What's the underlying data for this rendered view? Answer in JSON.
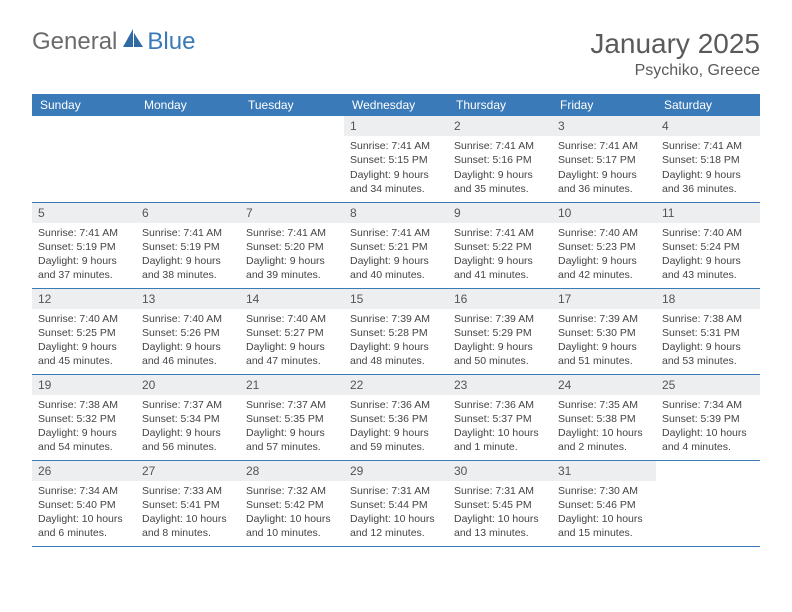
{
  "logo": {
    "text1": "General",
    "text2": "Blue"
  },
  "title": "January 2025",
  "location": "Psychiko, Greece",
  "colors": {
    "header_bg": "#3a7ab8",
    "header_fg": "#ffffff",
    "daynum_bg": "#eceeef",
    "rule": "#3a7ab8",
    "text": "#444444",
    "logo_gray": "#6b6b6b",
    "logo_blue": "#3a7ab8"
  },
  "dayNames": [
    "Sunday",
    "Monday",
    "Tuesday",
    "Wednesday",
    "Thursday",
    "Friday",
    "Saturday"
  ],
  "weeks": [
    [
      null,
      null,
      null,
      {
        "n": "1",
        "sunrise": "Sunrise: 7:41 AM",
        "sunset": "Sunset: 5:15 PM",
        "day1": "Daylight: 9 hours",
        "day2": "and 34 minutes."
      },
      {
        "n": "2",
        "sunrise": "Sunrise: 7:41 AM",
        "sunset": "Sunset: 5:16 PM",
        "day1": "Daylight: 9 hours",
        "day2": "and 35 minutes."
      },
      {
        "n": "3",
        "sunrise": "Sunrise: 7:41 AM",
        "sunset": "Sunset: 5:17 PM",
        "day1": "Daylight: 9 hours",
        "day2": "and 36 minutes."
      },
      {
        "n": "4",
        "sunrise": "Sunrise: 7:41 AM",
        "sunset": "Sunset: 5:18 PM",
        "day1": "Daylight: 9 hours",
        "day2": "and 36 minutes."
      }
    ],
    [
      {
        "n": "5",
        "sunrise": "Sunrise: 7:41 AM",
        "sunset": "Sunset: 5:19 PM",
        "day1": "Daylight: 9 hours",
        "day2": "and 37 minutes."
      },
      {
        "n": "6",
        "sunrise": "Sunrise: 7:41 AM",
        "sunset": "Sunset: 5:19 PM",
        "day1": "Daylight: 9 hours",
        "day2": "and 38 minutes."
      },
      {
        "n": "7",
        "sunrise": "Sunrise: 7:41 AM",
        "sunset": "Sunset: 5:20 PM",
        "day1": "Daylight: 9 hours",
        "day2": "and 39 minutes."
      },
      {
        "n": "8",
        "sunrise": "Sunrise: 7:41 AM",
        "sunset": "Sunset: 5:21 PM",
        "day1": "Daylight: 9 hours",
        "day2": "and 40 minutes."
      },
      {
        "n": "9",
        "sunrise": "Sunrise: 7:41 AM",
        "sunset": "Sunset: 5:22 PM",
        "day1": "Daylight: 9 hours",
        "day2": "and 41 minutes."
      },
      {
        "n": "10",
        "sunrise": "Sunrise: 7:40 AM",
        "sunset": "Sunset: 5:23 PM",
        "day1": "Daylight: 9 hours",
        "day2": "and 42 minutes."
      },
      {
        "n": "11",
        "sunrise": "Sunrise: 7:40 AM",
        "sunset": "Sunset: 5:24 PM",
        "day1": "Daylight: 9 hours",
        "day2": "and 43 minutes."
      }
    ],
    [
      {
        "n": "12",
        "sunrise": "Sunrise: 7:40 AM",
        "sunset": "Sunset: 5:25 PM",
        "day1": "Daylight: 9 hours",
        "day2": "and 45 minutes."
      },
      {
        "n": "13",
        "sunrise": "Sunrise: 7:40 AM",
        "sunset": "Sunset: 5:26 PM",
        "day1": "Daylight: 9 hours",
        "day2": "and 46 minutes."
      },
      {
        "n": "14",
        "sunrise": "Sunrise: 7:40 AM",
        "sunset": "Sunset: 5:27 PM",
        "day1": "Daylight: 9 hours",
        "day2": "and 47 minutes."
      },
      {
        "n": "15",
        "sunrise": "Sunrise: 7:39 AM",
        "sunset": "Sunset: 5:28 PM",
        "day1": "Daylight: 9 hours",
        "day2": "and 48 minutes."
      },
      {
        "n": "16",
        "sunrise": "Sunrise: 7:39 AM",
        "sunset": "Sunset: 5:29 PM",
        "day1": "Daylight: 9 hours",
        "day2": "and 50 minutes."
      },
      {
        "n": "17",
        "sunrise": "Sunrise: 7:39 AM",
        "sunset": "Sunset: 5:30 PM",
        "day1": "Daylight: 9 hours",
        "day2": "and 51 minutes."
      },
      {
        "n": "18",
        "sunrise": "Sunrise: 7:38 AM",
        "sunset": "Sunset: 5:31 PM",
        "day1": "Daylight: 9 hours",
        "day2": "and 53 minutes."
      }
    ],
    [
      {
        "n": "19",
        "sunrise": "Sunrise: 7:38 AM",
        "sunset": "Sunset: 5:32 PM",
        "day1": "Daylight: 9 hours",
        "day2": "and 54 minutes."
      },
      {
        "n": "20",
        "sunrise": "Sunrise: 7:37 AM",
        "sunset": "Sunset: 5:34 PM",
        "day1": "Daylight: 9 hours",
        "day2": "and 56 minutes."
      },
      {
        "n": "21",
        "sunrise": "Sunrise: 7:37 AM",
        "sunset": "Sunset: 5:35 PM",
        "day1": "Daylight: 9 hours",
        "day2": "and 57 minutes."
      },
      {
        "n": "22",
        "sunrise": "Sunrise: 7:36 AM",
        "sunset": "Sunset: 5:36 PM",
        "day1": "Daylight: 9 hours",
        "day2": "and 59 minutes."
      },
      {
        "n": "23",
        "sunrise": "Sunrise: 7:36 AM",
        "sunset": "Sunset: 5:37 PM",
        "day1": "Daylight: 10 hours",
        "day2": "and 1 minute."
      },
      {
        "n": "24",
        "sunrise": "Sunrise: 7:35 AM",
        "sunset": "Sunset: 5:38 PM",
        "day1": "Daylight: 10 hours",
        "day2": "and 2 minutes."
      },
      {
        "n": "25",
        "sunrise": "Sunrise: 7:34 AM",
        "sunset": "Sunset: 5:39 PM",
        "day1": "Daylight: 10 hours",
        "day2": "and 4 minutes."
      }
    ],
    [
      {
        "n": "26",
        "sunrise": "Sunrise: 7:34 AM",
        "sunset": "Sunset: 5:40 PM",
        "day1": "Daylight: 10 hours",
        "day2": "and 6 minutes."
      },
      {
        "n": "27",
        "sunrise": "Sunrise: 7:33 AM",
        "sunset": "Sunset: 5:41 PM",
        "day1": "Daylight: 10 hours",
        "day2": "and 8 minutes."
      },
      {
        "n": "28",
        "sunrise": "Sunrise: 7:32 AM",
        "sunset": "Sunset: 5:42 PM",
        "day1": "Daylight: 10 hours",
        "day2": "and 10 minutes."
      },
      {
        "n": "29",
        "sunrise": "Sunrise: 7:31 AM",
        "sunset": "Sunset: 5:44 PM",
        "day1": "Daylight: 10 hours",
        "day2": "and 12 minutes."
      },
      {
        "n": "30",
        "sunrise": "Sunrise: 7:31 AM",
        "sunset": "Sunset: 5:45 PM",
        "day1": "Daylight: 10 hours",
        "day2": "and 13 minutes."
      },
      {
        "n": "31",
        "sunrise": "Sunrise: 7:30 AM",
        "sunset": "Sunset: 5:46 PM",
        "day1": "Daylight: 10 hours",
        "day2": "and 15 minutes."
      },
      null
    ]
  ]
}
